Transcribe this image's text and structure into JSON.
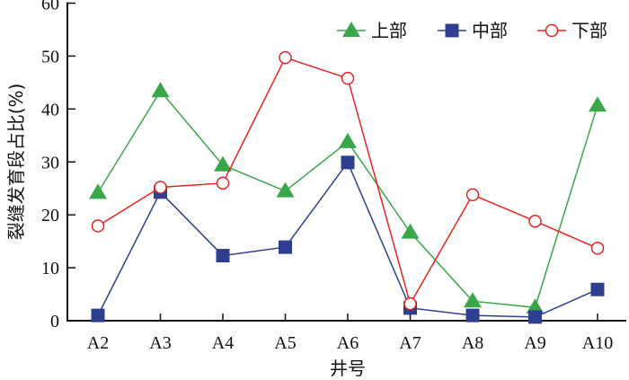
{
  "chart_data": {
    "type": "line",
    "title": "",
    "xlabel": "井号",
    "ylabel": "裂缝发育段占比(%)",
    "categories": [
      "A2",
      "A3",
      "A4",
      "A5",
      "A6",
      "A7",
      "A8",
      "A9",
      "A10"
    ],
    "ylim": [
      0,
      60
    ],
    "yticks": [
      0,
      10,
      20,
      30,
      40,
      50,
      60
    ],
    "grid": false,
    "legend_position": "top-right",
    "series": [
      {
        "name": "上部",
        "color": "#3aa64a",
        "marker": "triangle",
        "values": [
          24.2,
          43.4,
          29.4,
          24.5,
          33.8,
          16.7,
          3.7,
          2.5,
          40.7
        ]
      },
      {
        "name": "中部",
        "color": "#2e3f8f",
        "marker": "square",
        "values": [
          1.0,
          24.3,
          12.3,
          13.9,
          29.9,
          2.4,
          1.0,
          0.7,
          5.9
        ]
      },
      {
        "name": "下部",
        "color": "#e8231f",
        "marker": "open-circle",
        "values": [
          17.9,
          25.2,
          26.0,
          49.7,
          45.8,
          3.2,
          23.8,
          18.8,
          13.7
        ]
      }
    ]
  }
}
